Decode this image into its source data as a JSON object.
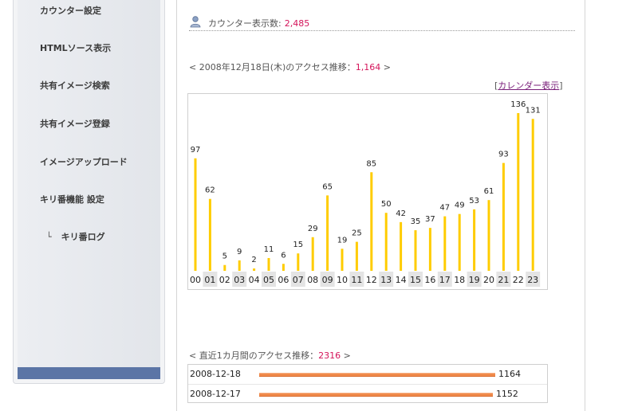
{
  "sidebar": {
    "items": [
      {
        "label": "カウンター設定"
      },
      {
        "label": "HTMLソース表示"
      },
      {
        "label": "共有イメージ検索"
      },
      {
        "label": "共有イメージ登録"
      },
      {
        "label": "イメージアップロード"
      },
      {
        "label": "キリ番機能 設定"
      }
    ],
    "sub_item": {
      "branch": "└",
      "label": "キリ番ログ"
    }
  },
  "counter": {
    "label": "カウンター表示数:",
    "value": "2,485",
    "icon": "user-icon"
  },
  "daily": {
    "prefix": "< 2008年12月18日(木)のアクセス推移：",
    "total": "1,164",
    "suffix": " >",
    "calendar_open": "[",
    "calendar_link": "カレンダー表示",
    "calendar_close": "]"
  },
  "chart_data": {
    "type": "bar",
    "categories": [
      "00",
      "01",
      "02",
      "03",
      "04",
      "05",
      "06",
      "07",
      "08",
      "09",
      "10",
      "11",
      "12",
      "13",
      "14",
      "15",
      "16",
      "17",
      "18",
      "19",
      "20",
      "21",
      "22",
      "23"
    ],
    "values": [
      97,
      62,
      5,
      9,
      2,
      11,
      6,
      15,
      29,
      65,
      19,
      25,
      85,
      50,
      42,
      35,
      37,
      47,
      49,
      53,
      61,
      93,
      136,
      131
    ],
    "ylim": [
      0,
      136
    ],
    "bar_color": "#ffcc00",
    "grid": false
  },
  "monthly": {
    "prefix": "< 直近1カ月間のアクセス推移：",
    "total": "2316",
    "suffix": " >",
    "rows": [
      {
        "date": "2008-12-18",
        "value": 1164
      },
      {
        "date": "2008-12-17",
        "value": 1152
      }
    ],
    "max": 1164,
    "bar_color": "#f08a4b"
  }
}
